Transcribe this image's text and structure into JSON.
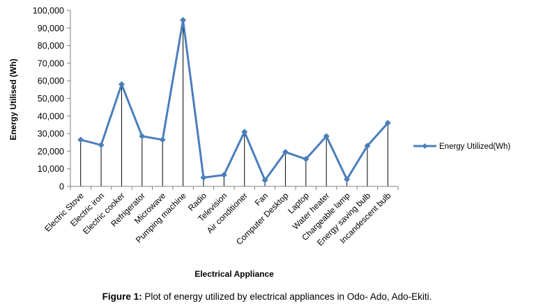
{
  "chart_data": {
    "type": "line",
    "xlabel": "Electrical  Appliance",
    "ylabel": "Energy Utilised  (Wh)",
    "ylim": [
      0,
      100000
    ],
    "yticks": [
      "0",
      "10,000",
      "20,000",
      "30,000",
      "40,000",
      "50,000",
      "60,000",
      "70,000",
      "80,000",
      "90,000",
      "100,000"
    ],
    "categories": [
      "Electric Stove",
      "Electric iron",
      "Electric cooker",
      "Refrigerator",
      "Microwave",
      "Pumping machine",
      "Radio",
      "Television",
      "Air conditioner",
      "Fan",
      "Computer Desktop",
      "Laptop",
      "Water heater",
      "Chargeable lamp",
      "Energy saving bulb",
      "Incandescent bulb"
    ],
    "series": [
      {
        "name": "Energy Utilized(Wh)",
        "values": [
          26500,
          23500,
          58000,
          28500,
          26500,
          94500,
          5000,
          6500,
          31000,
          3500,
          19500,
          15500,
          28500,
          4000,
          23000,
          36000
        ]
      }
    ],
    "legend_position": "right",
    "drop_lines": true,
    "grid": false
  },
  "caption": {
    "label": "Figure 1:",
    "text": " Plot of energy utilized by electrical appliances in Odo- Ado,  Ado-Ekiti."
  },
  "colors": {
    "series": "#4a7ebb",
    "axis": "#808080",
    "drop_line": "#000000"
  }
}
